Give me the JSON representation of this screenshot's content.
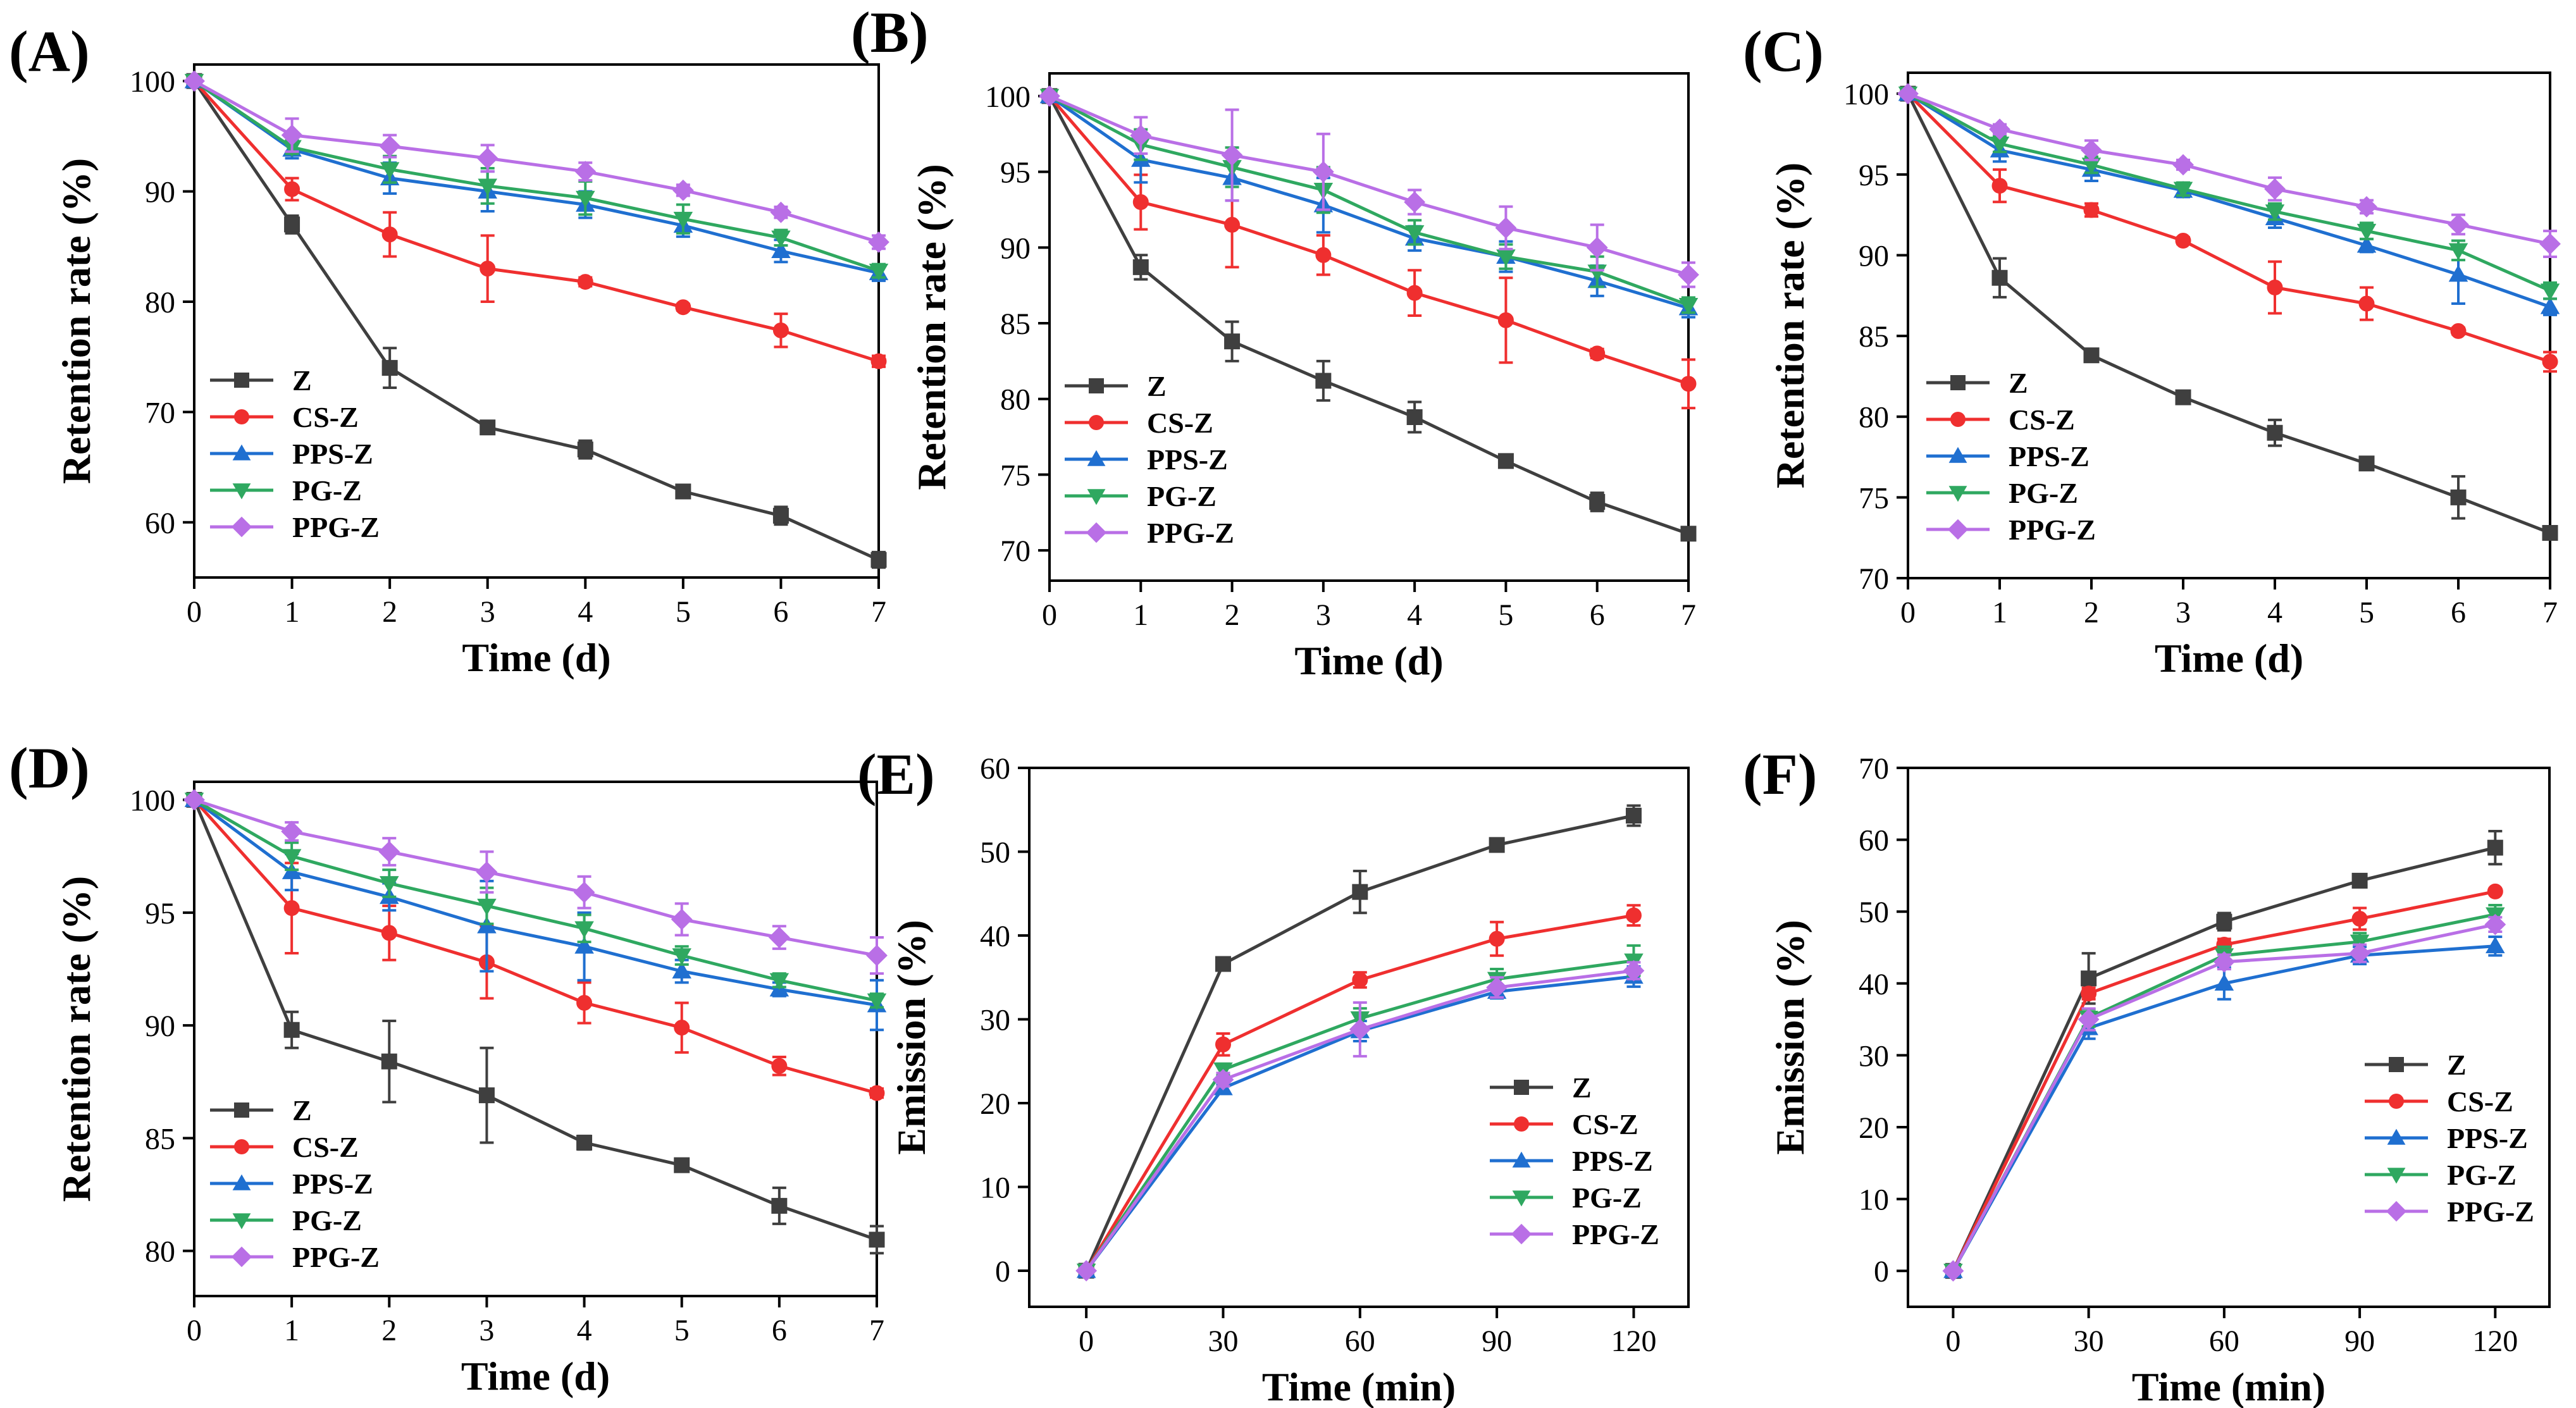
{
  "colors": {
    "Z": "#3f3f3f",
    "CS-Z": "#ef2f2f",
    "PPS-Z": "#1f6fd0",
    "PG-Z": "#2fa860",
    "PPG-Z": "#b96fe6"
  },
  "chart_data": [
    {
      "id": "A",
      "panel_label": "(A)",
      "type": "line",
      "xlabel": "Time (d)",
      "ylabel": "Retention rate (%)",
      "x": [
        0,
        1,
        2,
        3,
        4,
        5,
        6,
        7
      ],
      "xticks": [
        "0",
        "1",
        "2",
        "3",
        "4",
        "5",
        "6",
        "7"
      ],
      "xlim": [
        0,
        7
      ],
      "yticks": [
        "60",
        "70",
        "80",
        "90",
        "100"
      ],
      "ytick_values": [
        60,
        70,
        80,
        90,
        100
      ],
      "ylim": [
        55,
        101.5
      ],
      "legend_position": "lower-left",
      "series": [
        {
          "name": "Z",
          "marker": "square",
          "values": [
            100,
            87.0,
            74.0,
            68.6,
            66.6,
            62.8,
            60.6,
            56.6
          ],
          "errors": [
            0,
            0.8,
            1.8,
            0.4,
            0.8,
            0.3,
            0.8,
            0.7
          ]
        },
        {
          "name": "CS-Z",
          "marker": "circle",
          "values": [
            100,
            90.2,
            86.1,
            83.0,
            81.8,
            79.5,
            77.4,
            74.6
          ],
          "errors": [
            0,
            1.0,
            2.0,
            3.0,
            0.4,
            0.3,
            1.5,
            0.5
          ]
        },
        {
          "name": "PPS-Z",
          "marker": "triangle-up",
          "values": [
            100,
            93.8,
            91.2,
            90.0,
            88.8,
            86.9,
            84.6,
            82.6
          ],
          "errors": [
            0,
            0.8,
            1.4,
            1.8,
            1.2,
            1.0,
            1.0,
            0.7
          ]
        },
        {
          "name": "PG-Z",
          "marker": "triangle-down",
          "values": [
            100,
            94.0,
            92.0,
            90.5,
            89.4,
            87.5,
            85.8,
            82.8
          ],
          "errors": [
            0,
            0.6,
            1.2,
            1.6,
            1.5,
            1.3,
            0.7,
            0.6
          ]
        },
        {
          "name": "PPG-Z",
          "marker": "diamond",
          "values": [
            100,
            95.1,
            94.1,
            93.0,
            91.8,
            90.1,
            88.1,
            85.4
          ],
          "errors": [
            0,
            1.5,
            1.0,
            1.2,
            0.8,
            0.5,
            0.5,
            0.6
          ]
        }
      ]
    },
    {
      "id": "B",
      "panel_label": "(B)",
      "type": "line",
      "xlabel": "Time (d)",
      "ylabel": "Retention rate (%)",
      "x": [
        0,
        1,
        2,
        3,
        4,
        5,
        6,
        7
      ],
      "xticks": [
        "0",
        "1",
        "2",
        "3",
        "4",
        "5",
        "6",
        "7"
      ],
      "xlim": [
        0,
        7
      ],
      "yticks": [
        "70",
        "75",
        "80",
        "85",
        "90",
        "95",
        "100"
      ],
      "ytick_values": [
        70,
        75,
        80,
        85,
        90,
        95,
        100
      ],
      "ylim": [
        68,
        101.5
      ],
      "legend_position": "lower-left",
      "series": [
        {
          "name": "Z",
          "marker": "square",
          "values": [
            100,
            88.7,
            83.8,
            81.2,
            78.8,
            75.9,
            73.2,
            71.1
          ],
          "errors": [
            0,
            0.8,
            1.3,
            1.3,
            1.0,
            0.3,
            0.6,
            0.3
          ]
        },
        {
          "name": "CS-Z",
          "marker": "circle",
          "values": [
            100,
            93.0,
            91.5,
            89.5,
            87.0,
            85.2,
            83.0,
            81.0
          ],
          "errors": [
            0,
            1.8,
            2.8,
            1.3,
            1.5,
            2.8,
            0.3,
            1.6
          ]
        },
        {
          "name": "PPS-Z",
          "marker": "triangle-up",
          "values": [
            100,
            95.8,
            94.6,
            92.8,
            90.6,
            89.4,
            87.8,
            86.0
          ],
          "errors": [
            0,
            1.5,
            1.5,
            1.8,
            0.8,
            1.0,
            1.0,
            0.6
          ]
        },
        {
          "name": "PG-Z",
          "marker": "triangle-down",
          "values": [
            100,
            96.8,
            95.3,
            93.8,
            91.0,
            89.4,
            88.4,
            86.2
          ],
          "errors": [
            0,
            1.0,
            1.3,
            1.5,
            0.8,
            0.8,
            1.0,
            0.5
          ]
        },
        {
          "name": "PPG-Z",
          "marker": "diamond",
          "values": [
            100,
            97.4,
            96.1,
            95.0,
            93.0,
            91.3,
            90.0,
            88.2
          ],
          "errors": [
            0,
            1.2,
            3.0,
            2.5,
            0.8,
            1.4,
            1.5,
            0.8
          ]
        }
      ]
    },
    {
      "id": "C",
      "panel_label": "(C)",
      "type": "line",
      "xlabel": "Time (d)",
      "ylabel": "Retention rate (%)",
      "x": [
        0,
        1,
        2,
        3,
        4,
        5,
        6,
        7
      ],
      "xticks": [
        "0",
        "1",
        "2",
        "3",
        "4",
        "5",
        "6",
        "7"
      ],
      "xlim": [
        0,
        7
      ],
      "yticks": [
        "70",
        "75",
        "80",
        "85",
        "90",
        "95",
        "100"
      ],
      "ytick_values": [
        70,
        75,
        80,
        85,
        90,
        95,
        100
      ],
      "ylim": [
        70,
        101.3
      ],
      "legend_position": "lower-left",
      "series": [
        {
          "name": "Z",
          "marker": "square",
          "values": [
            100,
            88.6,
            83.8,
            81.2,
            79.0,
            77.1,
            75.0,
            72.8
          ],
          "errors": [
            0,
            1.2,
            0.4,
            0.2,
            0.8,
            0.2,
            1.3,
            0.2
          ]
        },
        {
          "name": "CS-Z",
          "marker": "circle",
          "values": [
            100,
            94.3,
            92.8,
            90.9,
            88.0,
            87.0,
            85.3,
            83.4
          ],
          "errors": [
            0,
            1.0,
            0.4,
            0.2,
            1.6,
            1.0,
            0.2,
            0.6
          ]
        },
        {
          "name": "PPS-Z",
          "marker": "triangle-up",
          "values": [
            100,
            96.5,
            95.3,
            94.0,
            92.3,
            90.6,
            88.8,
            86.8
          ],
          "errors": [
            0,
            0.7,
            0.7,
            0.4,
            0.6,
            0.4,
            1.8,
            0.5
          ]
        },
        {
          "name": "PG-Z",
          "marker": "triangle-down",
          "values": [
            100,
            96.9,
            95.6,
            94.1,
            92.7,
            91.5,
            90.3,
            87.8
          ],
          "errors": [
            0,
            0.5,
            0.5,
            0.4,
            0.5,
            0.5,
            0.6,
            0.5
          ]
        },
        {
          "name": "PPG-Z",
          "marker": "diamond",
          "values": [
            100,
            97.8,
            96.5,
            95.6,
            94.1,
            93.0,
            91.9,
            90.7
          ],
          "errors": [
            0,
            0.3,
            0.6,
            0.3,
            0.7,
            0.4,
            0.6,
            0.8
          ]
        }
      ]
    },
    {
      "id": "D",
      "panel_label": "(D)",
      "type": "line",
      "xlabel": "Time (d)",
      "ylabel": "Retention rate (%)",
      "x": [
        0,
        1,
        2,
        3,
        4,
        5,
        6,
        7
      ],
      "xticks": [
        "0",
        "1",
        "2",
        "3",
        "4",
        "5",
        "6",
        "7"
      ],
      "xlim": [
        0,
        7
      ],
      "yticks": [
        "80",
        "85",
        "90",
        "95",
        "100"
      ],
      "ytick_values": [
        80,
        85,
        90,
        95,
        100
      ],
      "ylim": [
        78,
        100.8
      ],
      "legend_position": "lower-left",
      "series": [
        {
          "name": "Z",
          "marker": "square",
          "values": [
            100,
            89.8,
            88.4,
            86.9,
            84.8,
            83.8,
            82.0,
            80.5
          ],
          "errors": [
            0,
            0.8,
            1.8,
            2.1,
            0.3,
            0.2,
            0.8,
            0.6
          ]
        },
        {
          "name": "CS-Z",
          "marker": "circle",
          "values": [
            100,
            95.2,
            94.1,
            92.8,
            91.0,
            89.9,
            88.2,
            87.0
          ],
          "errors": [
            0,
            2.0,
            1.2,
            1.6,
            0.9,
            1.1,
            0.4,
            0.2
          ]
        },
        {
          "name": "PPS-Z",
          "marker": "triangle-up",
          "values": [
            100,
            96.8,
            95.7,
            94.4,
            93.5,
            92.4,
            91.6,
            90.9
          ],
          "errors": [
            0,
            0.8,
            0.6,
            2.0,
            1.5,
            0.5,
            0.3,
            1.1
          ]
        },
        {
          "name": "PG-Z",
          "marker": "triangle-down",
          "values": [
            100,
            97.5,
            96.3,
            95.3,
            94.3,
            93.1,
            92.0,
            91.1
          ],
          "errors": [
            0,
            0.6,
            0.6,
            0.8,
            0.6,
            0.4,
            0.3,
            0.3
          ]
        },
        {
          "name": "PPG-Z",
          "marker": "diamond",
          "values": [
            100,
            98.6,
            97.7,
            96.8,
            95.9,
            94.7,
            93.9,
            93.1
          ],
          "errors": [
            0,
            0.4,
            0.6,
            0.9,
            0.7,
            0.7,
            0.5,
            0.8
          ]
        }
      ]
    },
    {
      "id": "E",
      "panel_label": "(E)",
      "type": "line",
      "xlabel": "Time (min)",
      "ylabel": "Emission (%)",
      "x": [
        0,
        30,
        60,
        90,
        120
      ],
      "xticks": [
        "0",
        "30",
        "60",
        "90",
        "120"
      ],
      "xlim": [
        -12.5,
        132
      ],
      "yticks": [
        "0",
        "10",
        "20",
        "30",
        "40",
        "50",
        "60"
      ],
      "ytick_values": [
        0,
        10,
        20,
        30,
        40,
        50,
        60
      ],
      "ylim": [
        -4.3,
        60
      ],
      "legend_position": "lower-right",
      "series": [
        {
          "name": "Z",
          "marker": "square",
          "values": [
            0,
            36.6,
            45.2,
            50.8,
            54.3
          ],
          "errors": [
            0,
            0.4,
            2.5,
            0.5,
            1.2
          ]
        },
        {
          "name": "CS-Z",
          "marker": "circle",
          "values": [
            0,
            27.0,
            34.7,
            39.6,
            42.4
          ],
          "errors": [
            0,
            1.3,
            0.9,
            2.0,
            1.2
          ]
        },
        {
          "name": "PPS-Z",
          "marker": "triangle-up",
          "values": [
            0,
            21.8,
            28.6,
            33.3,
            35.1
          ],
          "errors": [
            0,
            0.5,
            1.2,
            0.8,
            1.2
          ]
        },
        {
          "name": "PG-Z",
          "marker": "triangle-down",
          "values": [
            0,
            24.0,
            30.1,
            34.8,
            37.0
          ],
          "errors": [
            0,
            0.7,
            1.2,
            1.2,
            1.8
          ]
        },
        {
          "name": "PPG-Z",
          "marker": "diamond",
          "values": [
            0,
            22.8,
            28.8,
            33.8,
            35.8
          ],
          "errors": [
            0,
            0.8,
            3.2,
            1.2,
            1.0
          ]
        }
      ]
    },
    {
      "id": "F",
      "panel_label": "(F)",
      "type": "line",
      "xlabel": "Time (min)",
      "ylabel": "Emission (%)",
      "x": [
        0,
        30,
        60,
        90,
        120
      ],
      "xticks": [
        "0",
        "30",
        "60",
        "90",
        "120"
      ],
      "xlim": [
        -10,
        132
      ],
      "yticks": [
        "0",
        "10",
        "20",
        "30",
        "40",
        "50",
        "60",
        "70"
      ],
      "ytick_values": [
        0,
        10,
        20,
        30,
        40,
        50,
        60,
        70
      ],
      "ylim": [
        -5,
        70
      ],
      "legend_position": "lower-right",
      "series": [
        {
          "name": "Z",
          "marker": "square",
          "values": [
            0,
            40.7,
            48.6,
            54.3,
            58.9
          ],
          "errors": [
            0,
            3.5,
            1.2,
            0.3,
            2.3
          ]
        },
        {
          "name": "CS-Z",
          "marker": "circle",
          "values": [
            0,
            38.6,
            45.4,
            49.0,
            52.8
          ],
          "errors": [
            0,
            0.8,
            0.8,
            1.5,
            0.3
          ]
        },
        {
          "name": "PPS-Z",
          "marker": "triangle-up",
          "values": [
            0,
            33.8,
            40.0,
            43.9,
            45.2
          ],
          "errors": [
            0,
            1.5,
            2.2,
            1.2,
            1.3
          ]
        },
        {
          "name": "PG-Z",
          "marker": "triangle-down",
          "values": [
            0,
            35.2,
            43.9,
            45.8,
            49.6
          ],
          "errors": [
            0,
            1.2,
            1.2,
            1.2,
            1.3
          ]
        },
        {
          "name": "PPG-Z",
          "marker": "diamond",
          "values": [
            0,
            35.0,
            43.0,
            44.2,
            48.2
          ],
          "errors": [
            0,
            1.5,
            1.0,
            1.2,
            1.0
          ]
        }
      ]
    }
  ]
}
